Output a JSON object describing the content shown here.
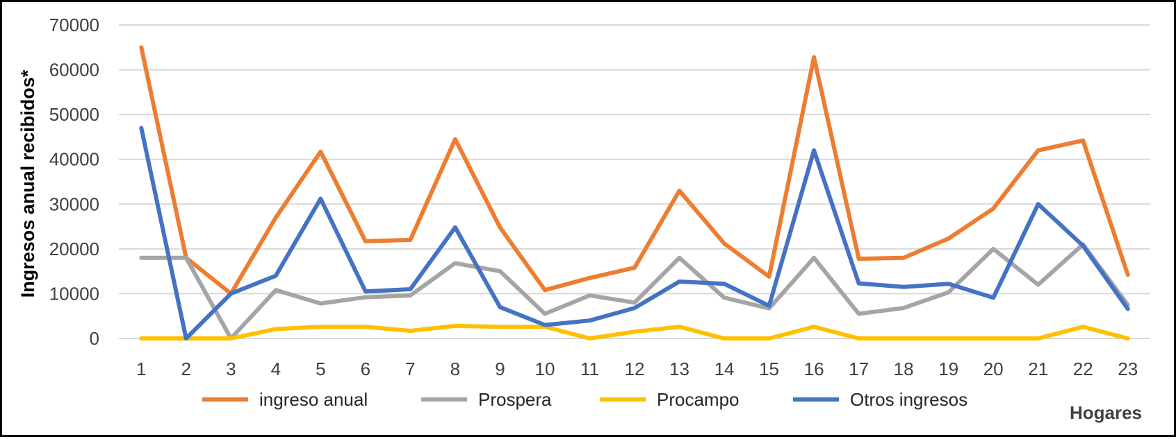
{
  "chart_data": {
    "type": "line",
    "xlabel": "Hogares",
    "ylabel": "Ingresos anual recibidos*",
    "ylim": [
      0,
      70000
    ],
    "yticks": [
      0,
      10000,
      20000,
      30000,
      40000,
      50000,
      60000,
      70000
    ],
    "categories": [
      "1",
      "2",
      "3",
      "4",
      "5",
      "6",
      "7",
      "8",
      "9",
      "10",
      "11",
      "12",
      "13",
      "14",
      "15",
      "16",
      "17",
      "18",
      "19",
      "20",
      "21",
      "22",
      "23"
    ],
    "grid": "horizontal",
    "legend_position": "bottom",
    "series": [
      {
        "name": "ingreso anual",
        "color": "#ED7D31",
        "values": [
          65000,
          18000,
          10000,
          27000,
          41700,
          21700,
          22000,
          44500,
          24800,
          10800,
          13500,
          15800,
          33000,
          21200,
          13800,
          62800,
          17800,
          18000,
          22300,
          29000,
          42000,
          44200,
          14200
        ]
      },
      {
        "name": "Prospera",
        "color": "#A5A5A5",
        "values": [
          18000,
          18000,
          0,
          10800,
          7800,
          9200,
          9600,
          16800,
          15000,
          5500,
          9600,
          8000,
          18000,
          9100,
          6700,
          18000,
          5500,
          6800,
          10300,
          20000,
          12000,
          21000,
          7500
        ]
      },
      {
        "name": "Procampo",
        "color": "#FFC000",
        "values": [
          0,
          0,
          0,
          2100,
          2600,
          2600,
          1700,
          2800,
          2600,
          2600,
          0,
          1500,
          2600,
          0,
          0,
          2600,
          0,
          0,
          0,
          0,
          0,
          2600,
          0
        ]
      },
      {
        "name": "Otros ingresos",
        "color": "#4472C4",
        "values": [
          47000,
          0,
          10000,
          14000,
          31200,
          10500,
          11000,
          24800,
          7000,
          3000,
          4000,
          6800,
          12700,
          12200,
          7300,
          42000,
          12300,
          11500,
          12200,
          9100,
          30000,
          20700,
          6600
        ]
      }
    ]
  }
}
